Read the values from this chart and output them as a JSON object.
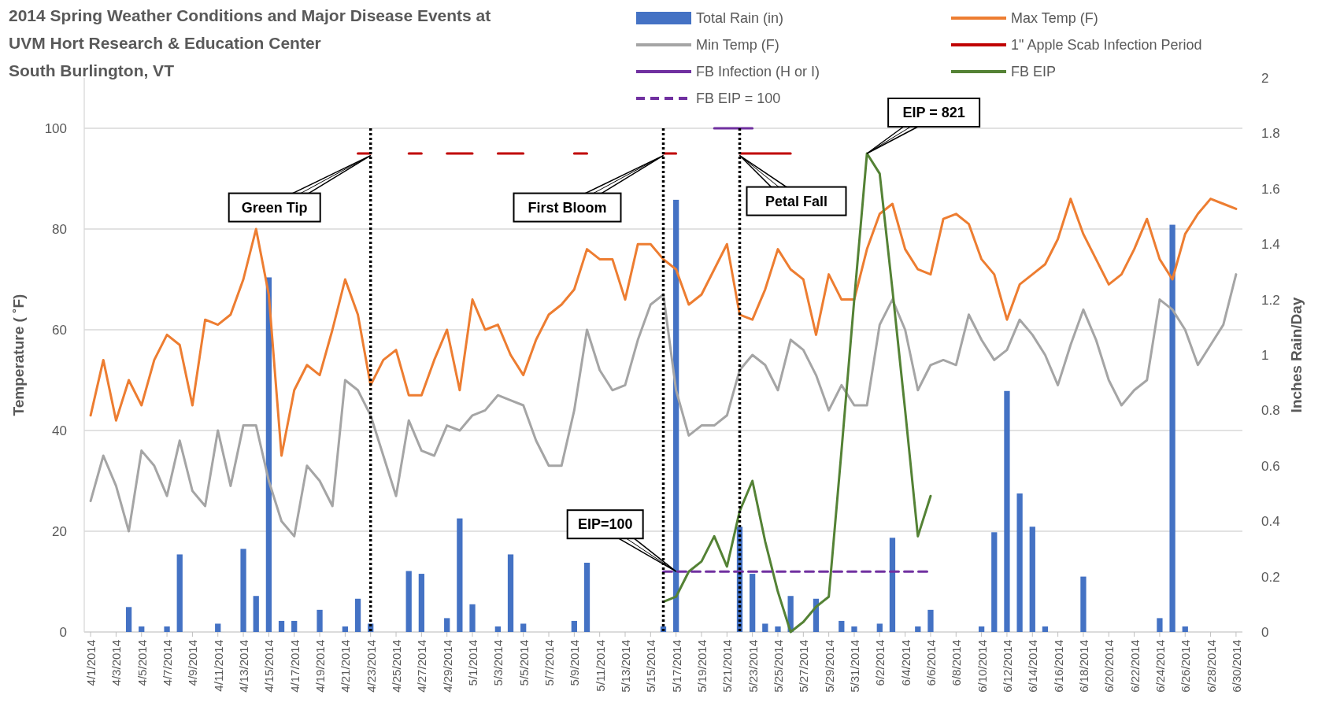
{
  "chart_data": {
    "type": "line",
    "title": "2014 Spring Weather Conditions and Major Disease Events at\nUVM Hort Research & Education Center\nSouth Burlington, VT",
    "ylabel": "Temperature ( ˚F)",
    "y2label": "Inches Rain/Day",
    "x": [
      "2014-04-01",
      "2014-04-02",
      "2014-04-03",
      "2014-04-04",
      "2014-04-05",
      "2014-04-06",
      "2014-04-07",
      "2014-04-08",
      "2014-04-09",
      "2014-04-10",
      "2014-04-11",
      "2014-04-12",
      "2014-04-13",
      "2014-04-14",
      "2014-04-15",
      "2014-04-16",
      "2014-04-17",
      "2014-04-18",
      "2014-04-19",
      "2014-04-20",
      "2014-04-21",
      "2014-04-22",
      "2014-04-23",
      "2014-04-24",
      "2014-04-25",
      "2014-04-26",
      "2014-04-27",
      "2014-04-28",
      "2014-04-29",
      "2014-04-30",
      "2014-05-01",
      "2014-05-02",
      "2014-05-03",
      "2014-05-04",
      "2014-05-05",
      "2014-05-06",
      "2014-05-07",
      "2014-05-08",
      "2014-05-09",
      "2014-05-10",
      "2014-05-11",
      "2014-05-12",
      "2014-05-13",
      "2014-05-14",
      "2014-05-15",
      "2014-05-16",
      "2014-05-17",
      "2014-05-18",
      "2014-05-19",
      "2014-05-20",
      "2014-05-21",
      "2014-05-22",
      "2014-05-23",
      "2014-05-24",
      "2014-05-25",
      "2014-05-26",
      "2014-05-27",
      "2014-05-28",
      "2014-05-29",
      "2014-05-30",
      "2014-05-31",
      "2014-06-01",
      "2014-06-02",
      "2014-06-03",
      "2014-06-04",
      "2014-06-05",
      "2014-06-06",
      "2014-06-07",
      "2014-06-08",
      "2014-06-09",
      "2014-06-10",
      "2014-06-11",
      "2014-06-12",
      "2014-06-13",
      "2014-06-14",
      "2014-06-15",
      "2014-06-16",
      "2014-06-17",
      "2014-06-18",
      "2014-06-19",
      "2014-06-20",
      "2014-06-21",
      "2014-06-22",
      "2014-06-23",
      "2014-06-24",
      "2014-06-25",
      "2014-06-26",
      "2014-06-27",
      "2014-06-28",
      "2014-06-29",
      "2014-06-30"
    ],
    "series": [
      {
        "name": "Total Rain (in)",
        "type": "bar",
        "axis": "y2",
        "color": "#4472c4",
        "values": [
          0,
          0,
          0,
          0.09,
          0.02,
          0,
          0.02,
          0.28,
          0,
          0,
          0.03,
          0,
          0.3,
          0.13,
          1.28,
          0.04,
          0.04,
          0,
          0.08,
          0,
          0.02,
          0.12,
          0.03,
          0,
          0,
          0.22,
          0.21,
          0,
          0.05,
          0.41,
          0.1,
          0,
          0.02,
          0.28,
          0.03,
          0,
          0,
          0,
          0.04,
          0.25,
          0,
          0,
          0,
          0,
          0,
          0.02,
          1.56,
          0,
          0,
          0,
          0,
          0.38,
          0.21,
          0.03,
          0.02,
          0.13,
          0,
          0.12,
          0,
          0.04,
          0.02,
          0,
          0.03,
          0.34,
          0,
          0.02,
          0.08,
          0,
          0,
          0,
          0.02,
          0.36,
          0.87,
          0.5,
          0.38,
          0.02,
          0,
          0,
          0.2,
          0,
          0,
          0,
          0,
          0,
          0.05,
          1.47,
          0.02,
          0,
          0,
          0,
          0
        ]
      },
      {
        "name": "Max Temp (F)",
        "color": "#ed7d31",
        "values": [
          43,
          54,
          42,
          50,
          45,
          54,
          59,
          57,
          45,
          62,
          61,
          63,
          70,
          80,
          67,
          35,
          48,
          53,
          51,
          60,
          70,
          63,
          49,
          54,
          56,
          47,
          47,
          54,
          60,
          48,
          66,
          60,
          61,
          55,
          51,
          58,
          63,
          65,
          68,
          76,
          74,
          74,
          66,
          77,
          77,
          74,
          72,
          65,
          67,
          72,
          77,
          63,
          62,
          68,
          76,
          72,
          70,
          59,
          71,
          66,
          66,
          76,
          83,
          85,
          76,
          72,
          71,
          82,
          83,
          81,
          74,
          71,
          62,
          69,
          71,
          73,
          78,
          86,
          79,
          74,
          69,
          71,
          76,
          82,
          74,
          70,
          79,
          83,
          86,
          85,
          84
        ]
      },
      {
        "name": "Min Temp (F)",
        "color": "#a5a5a5",
        "values": [
          26,
          35,
          29,
          20,
          36,
          33,
          27,
          38,
          28,
          25,
          40,
          29,
          41,
          41,
          30,
          22,
          19,
          33,
          30,
          25,
          50,
          48,
          43,
          35,
          27,
          42,
          36,
          35,
          41,
          40,
          43,
          44,
          47,
          46,
          45,
          38,
          33,
          33,
          44,
          60,
          52,
          48,
          49,
          58,
          65,
          67,
          48,
          39,
          41,
          41,
          43,
          52,
          55,
          53,
          48,
          58,
          56,
          51,
          44,
          49,
          45,
          45,
          61,
          66,
          60,
          48,
          53,
          54,
          53,
          63,
          58,
          54,
          56,
          62,
          59,
          55,
          49,
          57,
          64,
          58,
          50,
          45,
          48,
          50,
          66,
          64,
          60,
          53,
          57,
          61,
          71
        ]
      },
      {
        "name": "1\" Apple Scab Infection Period",
        "color": "#c00000",
        "values": [
          null,
          null,
          null,
          null,
          null,
          null,
          null,
          null,
          null,
          null,
          null,
          null,
          null,
          null,
          null,
          null,
          null,
          null,
          null,
          null,
          null,
          95,
          95,
          null,
          null,
          95,
          95,
          null,
          95,
          95,
          95,
          null,
          95,
          95,
          95,
          null,
          null,
          null,
          95,
          95,
          null,
          null,
          null,
          null,
          null,
          95,
          95,
          null,
          null,
          null,
          null,
          95,
          95,
          95,
          95,
          95,
          null,
          null,
          null,
          null,
          null,
          null,
          null,
          null,
          null,
          null,
          null,
          null,
          null,
          null,
          null,
          null,
          null,
          null,
          null,
          null,
          null,
          null,
          null,
          null,
          null,
          null,
          null,
          null,
          null,
          null,
          null,
          null,
          null,
          null,
          null
        ]
      },
      {
        "name": "FB Infection (H or I)",
        "color": "#7030a0",
        "x": [
          "2014-05-20",
          "2014-05-21",
          "2014-05-22",
          "2014-05-23"
        ],
        "values": [
          100,
          100,
          100,
          100
        ]
      },
      {
        "name": "FB EIP",
        "color": "#548235",
        "x": [
          "2014-05-16",
          "2014-05-17",
          "2014-05-18",
          "2014-05-19",
          "2014-05-20",
          "2014-05-21",
          "2014-05-22",
          "2014-05-23",
          "2014-05-24",
          "2014-05-25",
          "2014-05-26",
          "2014-05-27",
          "2014-05-28",
          "2014-05-29",
          "2014-05-30",
          "2014-05-31",
          "2014-06-01",
          "2014-06-02",
          "2014-06-03",
          "2014-06-04",
          "2014-06-05",
          "2014-06-06"
        ],
        "values": [
          6,
          7,
          12,
          14,
          19,
          13,
          24,
          30,
          18,
          8,
          0,
          2,
          5,
          7,
          36,
          66,
          95,
          91,
          68,
          44,
          19,
          27
        ]
      },
      {
        "name": "FB EIP = 100",
        "color": "#7030a0",
        "line_style": "dashed",
        "x": [
          "2014-05-16",
          "2014-06-06"
        ],
        "values": [
          12,
          12
        ]
      }
    ],
    "xlim": [
      "2014-03-31T12:00",
      "2014-06-30T12:00"
    ],
    "xticks": [
      {
        "value": "2014-04-01",
        "label": "4/1/2014"
      },
      {
        "value": "2014-04-03",
        "label": "4/3/2014"
      },
      {
        "value": "2014-04-05",
        "label": "4/5/2014"
      },
      {
        "value": "2014-04-07",
        "label": "4/7/2014"
      },
      {
        "value": "2014-04-09",
        "label": "4/9/2014"
      },
      {
        "value": "2014-04-11",
        "label": "4/11/2014"
      },
      {
        "value": "2014-04-13",
        "label": "4/13/2014"
      },
      {
        "value": "2014-04-15",
        "label": "4/15/2014"
      },
      {
        "value": "2014-04-17",
        "label": "4/17/2014"
      },
      {
        "value": "2014-04-19",
        "label": "4/19/2014"
      },
      {
        "value": "2014-04-21",
        "label": "4/21/2014"
      },
      {
        "value": "2014-04-23",
        "label": "4/23/2014"
      },
      {
        "value": "2014-04-25",
        "label": "4/25/2014"
      },
      {
        "value": "2014-04-27",
        "label": "4/27/2014"
      },
      {
        "value": "2014-04-29",
        "label": "4/29/2014"
      },
      {
        "value": "2014-05-01",
        "label": "5/1/2014"
      },
      {
        "value": "2014-05-03",
        "label": "5/3/2014"
      },
      {
        "value": "2014-05-05",
        "label": "5/5/2014"
      },
      {
        "value": "2014-05-07",
        "label": "5/7/2014"
      },
      {
        "value": "2014-05-09",
        "label": "5/9/2014"
      },
      {
        "value": "2014-05-11",
        "label": "5/11/2014"
      },
      {
        "value": "2014-05-13",
        "label": "5/13/2014"
      },
      {
        "value": "2014-05-15",
        "label": "5/15/2014"
      },
      {
        "value": "2014-05-17",
        "label": "5/17/2014"
      },
      {
        "value": "2014-05-19",
        "label": "5/19/2014"
      },
      {
        "value": "2014-05-21",
        "label": "5/21/2014"
      },
      {
        "value": "2014-05-23",
        "label": "5/23/2014"
      },
      {
        "value": "2014-05-25",
        "label": "5/25/2014"
      },
      {
        "value": "2014-05-27",
        "label": "5/27/2014"
      },
      {
        "value": "2014-05-29",
        "label": "5/29/2014"
      },
      {
        "value": "2014-05-31",
        "label": "5/31/2014"
      },
      {
        "value": "2014-06-02",
        "label": "6/2/2014"
      },
      {
        "value": "2014-06-04",
        "label": "6/4/2014"
      },
      {
        "value": "2014-06-06",
        "label": "6/6/2014"
      },
      {
        "value": "2014-06-08",
        "label": "6/8/2014"
      },
      {
        "value": "2014-06-10",
        "label": "6/10/2014"
      },
      {
        "value": "2014-06-12",
        "label": "6/12/2014"
      },
      {
        "value": "2014-06-14",
        "label": "6/14/2014"
      },
      {
        "value": "2014-06-16",
        "label": "6/16/2014"
      },
      {
        "value": "2014-06-18",
        "label": "6/18/2014"
      },
      {
        "value": "2014-06-20",
        "label": "6/20/2014"
      },
      {
        "value": "2014-06-22",
        "label": "6/22/2014"
      },
      {
        "value": "2014-06-24",
        "label": "6/24/2014"
      },
      {
        "value": "2014-06-26",
        "label": "6/26/2014"
      },
      {
        "value": "2014-06-28",
        "label": "6/28/2014"
      },
      {
        "value": "2014-06-30",
        "label": "6/30/2014"
      }
    ],
    "ylim": [
      0,
      110
    ],
    "yticks": [
      0,
      20,
      40,
      60,
      80,
      100
    ],
    "y2lim": [
      0,
      2
    ],
    "y2ticks": [
      0,
      0.2,
      0.4,
      0.6,
      0.8,
      1,
      1.2,
      1.4,
      1.6,
      1.8,
      2
    ],
    "grid": "y",
    "legend": "top right",
    "ref_lines": [
      {
        "axis": "x",
        "value": "2014-04-23",
        "label": "Green Tip",
        "color": "#000000",
        "line_style": "dotted"
      },
      {
        "axis": "x",
        "value": "2014-05-16",
        "label": "First Bloom",
        "color": "#000000",
        "line_style": "dotted"
      },
      {
        "axis": "x",
        "value": "2014-05-22",
        "label": "Petal Fall",
        "color": "#000000",
        "line_style": "dotted"
      }
    ],
    "annotations": [
      {
        "text": "EIP=100",
        "x": "2014-05-17",
        "y": 12
      },
      {
        "text": "EIP = 821",
        "x": "2014-06-01",
        "y": 95
      }
    ]
  }
}
